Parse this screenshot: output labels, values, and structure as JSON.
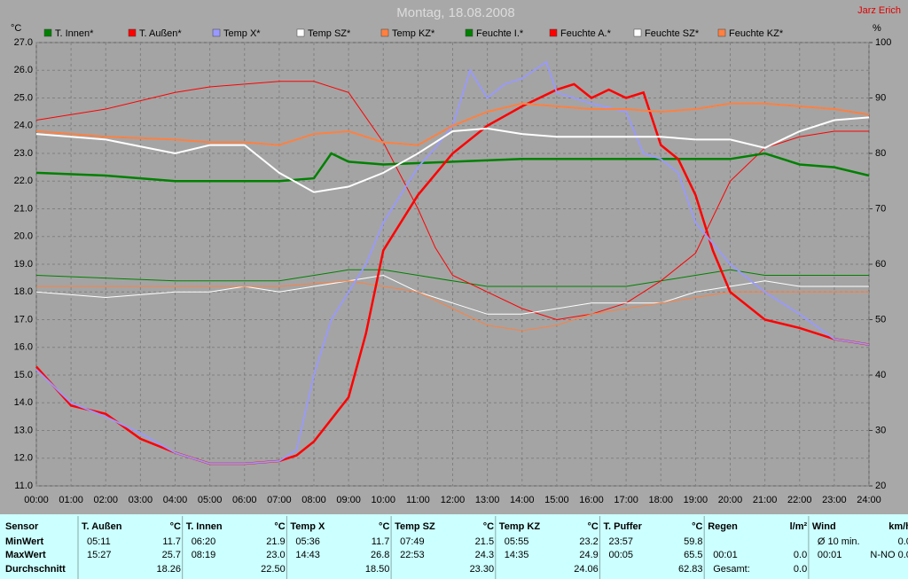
{
  "chart_data": {
    "type": "line",
    "title": "Montag, 18.08.2008",
    "author": "Jarz Erich",
    "y_unit": "°C",
    "y2_unit": "%",
    "xlim": [
      0,
      24
    ],
    "xticks": [
      {
        "value": 0,
        "label": "00:00"
      },
      {
        "value": 1,
        "label": "01:00"
      },
      {
        "value": 2,
        "label": "02:00"
      },
      {
        "value": 3,
        "label": "03:00"
      },
      {
        "value": 4,
        "label": "04:00"
      },
      {
        "value": 5,
        "label": "05:00"
      },
      {
        "value": 6,
        "label": "06:00"
      },
      {
        "value": 7,
        "label": "07:00"
      },
      {
        "value": 8,
        "label": "08:00"
      },
      {
        "value": 9,
        "label": "09:00"
      },
      {
        "value": 10,
        "label": "10:00"
      },
      {
        "value": 11,
        "label": "11:00"
      },
      {
        "value": 12,
        "label": "12:00"
      },
      {
        "value": 13,
        "label": "13:00"
      },
      {
        "value": 14,
        "label": "14:00"
      },
      {
        "value": 15,
        "label": "15:00"
      },
      {
        "value": 16,
        "label": "16:00"
      },
      {
        "value": 17,
        "label": "17:00"
      },
      {
        "value": 18,
        "label": "18:00"
      },
      {
        "value": 19,
        "label": "19:00"
      },
      {
        "value": 20,
        "label": "20:00"
      },
      {
        "value": 21,
        "label": "21:00"
      },
      {
        "value": 22,
        "label": "22:00"
      },
      {
        "value": 23,
        "label": "23:00"
      },
      {
        "value": 24,
        "label": "24:00"
      }
    ],
    "ylim": [
      11,
      27
    ],
    "yticks": [
      {
        "value": 11,
        "label": "11.0"
      },
      {
        "value": 12,
        "label": "12.0"
      },
      {
        "value": 13,
        "label": "13.0"
      },
      {
        "value": 14,
        "label": "14.0"
      },
      {
        "value": 15,
        "label": "15.0"
      },
      {
        "value": 16,
        "label": "16.0"
      },
      {
        "value": 17,
        "label": "17.0"
      },
      {
        "value": 18,
        "label": "18.0"
      },
      {
        "value": 19,
        "label": "19.0"
      },
      {
        "value": 20,
        "label": "20.0"
      },
      {
        "value": 21,
        "label": "21.0"
      },
      {
        "value": 22,
        "label": "22.0"
      },
      {
        "value": 23,
        "label": "23.0"
      },
      {
        "value": 24,
        "label": "24.0"
      },
      {
        "value": 25,
        "label": "25.0"
      },
      {
        "value": 26,
        "label": "26.0"
      },
      {
        "value": 27,
        "label": "27.0"
      }
    ],
    "y2lim": [
      20,
      100
    ],
    "y2ticks": [
      20,
      30,
      40,
      50,
      60,
      70,
      80,
      90,
      100
    ],
    "grid": true,
    "series": [
      {
        "name": "T. Innen*",
        "color": "#008000",
        "width": 2.5,
        "x": [
          0,
          2,
          4,
          6,
          7,
          8,
          8.5,
          9,
          10,
          12,
          14,
          16,
          18,
          20,
          21,
          22,
          23,
          24
        ],
        "values": [
          22.3,
          22.2,
          22.0,
          22.0,
          22.0,
          22.1,
          23.0,
          22.7,
          22.6,
          22.7,
          22.8,
          22.8,
          22.8,
          22.8,
          23.0,
          22.6,
          22.5,
          22.2
        ]
      },
      {
        "name": "T. Außen*",
        "color": "#ff0000",
        "width": 2.5,
        "x": [
          0,
          1,
          2,
          3,
          4,
          5,
          6,
          7,
          7.5,
          8,
          9,
          9.5,
          10,
          11,
          12,
          13,
          14,
          15,
          15.5,
          16,
          16.5,
          17,
          17.5,
          18,
          18.5,
          19,
          19.5,
          20,
          21,
          22,
          23,
          24
        ],
        "values": [
          15.3,
          13.9,
          13.6,
          12.7,
          12.2,
          11.8,
          11.8,
          11.9,
          12.1,
          12.6,
          14.2,
          16.5,
          19.5,
          21.5,
          23.0,
          24.0,
          24.7,
          25.3,
          25.5,
          25.0,
          25.3,
          25.0,
          25.2,
          23.3,
          22.8,
          21.5,
          19.5,
          18.0,
          17.0,
          16.7,
          16.3,
          16.1
        ]
      },
      {
        "name": "Temp X*",
        "color": "#9999ff",
        "width": 1.8,
        "x": [
          0,
          1,
          2,
          3,
          4,
          5,
          6,
          7,
          7.5,
          8,
          8.5,
          9,
          9.5,
          10,
          10.5,
          11,
          11.5,
          12,
          12.5,
          13,
          13.5,
          14,
          14.7,
          15,
          16,
          17,
          17.5,
          18,
          18.5,
          19,
          20,
          21,
          22,
          23,
          24
        ],
        "values": [
          15.2,
          14.0,
          13.5,
          12.9,
          12.2,
          11.8,
          11.8,
          11.9,
          12.3,
          15.0,
          17.0,
          18.0,
          19.0,
          20.5,
          21.5,
          22.5,
          23.2,
          24.0,
          26.0,
          25.0,
          25.5,
          25.7,
          26.3,
          25.2,
          24.8,
          24.5,
          23.0,
          22.8,
          22.3,
          20.5,
          19.0,
          18.0,
          17.2,
          16.3,
          16.1
        ]
      },
      {
        "name": "Temp SZ*",
        "color": "#ffffff",
        "width": 2,
        "x": [
          0,
          2,
          4,
          5,
          6,
          7,
          8,
          9,
          10,
          11,
          12,
          13,
          14,
          15,
          16,
          17,
          18,
          19,
          20,
          21,
          22,
          23,
          24
        ],
        "values": [
          23.7,
          23.5,
          23.0,
          23.3,
          23.3,
          22.3,
          21.6,
          21.8,
          22.3,
          23.0,
          23.8,
          23.9,
          23.7,
          23.6,
          23.6,
          23.6,
          23.6,
          23.5,
          23.5,
          23.2,
          23.8,
          24.2,
          24.3
        ]
      },
      {
        "name": "Temp KZ*",
        "color": "#ff8040",
        "width": 2,
        "x": [
          0,
          2,
          4,
          5,
          6,
          7,
          8,
          9,
          10,
          11,
          12,
          13,
          14,
          15,
          16,
          17,
          18,
          19,
          20,
          21,
          22,
          23,
          24
        ],
        "values": [
          23.8,
          23.6,
          23.5,
          23.4,
          23.4,
          23.3,
          23.7,
          23.8,
          23.4,
          23.3,
          24.0,
          24.5,
          24.8,
          24.7,
          24.6,
          24.6,
          24.5,
          24.6,
          24.8,
          24.8,
          24.7,
          24.6,
          24.4
        ]
      },
      {
        "name": "Feuchte I.*",
        "color": "#008000",
        "width": 1,
        "axis": "y2",
        "x": [
          0,
          4,
          7,
          9,
          10,
          11,
          12,
          13,
          14,
          15,
          16,
          17,
          18,
          19,
          20,
          21,
          22,
          24
        ],
        "values": [
          58,
          57,
          57,
          59,
          59,
          58,
          57,
          56,
          56,
          56,
          56,
          56,
          57,
          58,
          59,
          58,
          58,
          58
        ]
      },
      {
        "name": "Feuchte A.*",
        "color": "#ff0000",
        "width": 1,
        "axis": "y2",
        "x": [
          0,
          2,
          4,
          5,
          7,
          8,
          9,
          10,
          11,
          11.5,
          12,
          13,
          14,
          15,
          16,
          17,
          18,
          19,
          20,
          21,
          22,
          23,
          24
        ],
        "values": [
          86,
          88,
          91,
          92,
          93,
          93,
          91,
          82,
          70,
          63,
          58,
          55,
          52,
          50,
          51,
          53,
          57,
          62,
          75,
          81,
          83,
          84,
          84
        ]
      },
      {
        "name": "Feuchte SZ*",
        "color": "#ffffff",
        "width": 1,
        "axis": "y2",
        "x": [
          0,
          2,
          4,
          5,
          6,
          7,
          8,
          9,
          10,
          11,
          12,
          13,
          14,
          15,
          16,
          17,
          18,
          19,
          20,
          21,
          22,
          24
        ],
        "values": [
          55,
          54,
          55,
          55,
          56,
          55,
          56,
          57,
          58,
          55,
          53,
          51,
          51,
          52,
          53,
          53,
          53,
          55,
          56,
          57,
          56,
          56
        ]
      },
      {
        "name": "Feuchte KZ*",
        "color": "#ff8040",
        "width": 1,
        "axis": "y2",
        "x": [
          0,
          4,
          7,
          9,
          10,
          11,
          12,
          13,
          14,
          15,
          16,
          17,
          18,
          19,
          20,
          22,
          24
        ],
        "values": [
          56,
          56,
          56,
          57,
          56,
          55,
          52,
          49,
          48,
          49,
          51,
          52,
          53,
          54,
          55,
          55,
          55
        ]
      }
    ]
  },
  "table": {
    "row_labels": [
      "Sensor",
      "MinWert",
      "MaxWert",
      "Durchschnitt"
    ],
    "groups": [
      {
        "name": "T. Außen",
        "unit": "°C",
        "rows": [
          [
            "05:11",
            "11.7"
          ],
          [
            "15:27",
            "25.7"
          ],
          [
            "18.26"
          ]
        ]
      },
      {
        "name": "T. Innen",
        "unit": "°C",
        "rows": [
          [
            "06:20",
            "21.9"
          ],
          [
            "08:19",
            "23.0"
          ],
          [
            "22.50"
          ]
        ]
      },
      {
        "name": "Temp X",
        "unit": "°C",
        "rows": [
          [
            "05:36",
            "11.7"
          ],
          [
            "14:43",
            "26.8"
          ],
          [
            "18.50"
          ]
        ]
      },
      {
        "name": "Temp SZ",
        "unit": "°C",
        "rows": [
          [
            "07:49",
            "21.5"
          ],
          [
            "22:53",
            "24.3"
          ],
          [
            "23.30"
          ]
        ]
      },
      {
        "name": "Temp KZ",
        "unit": "°C",
        "rows": [
          [
            "05:55",
            "23.2"
          ],
          [
            "14:35",
            "24.9"
          ],
          [
            "24.06"
          ]
        ]
      },
      {
        "name": "T. Puffer",
        "unit": "°C",
        "rows": [
          [
            "23:57",
            "59.8"
          ],
          [
            "00:05",
            "65.5"
          ],
          [
            "62.83"
          ]
        ]
      },
      {
        "name": "Regen",
        "unit": "l/m²",
        "rows": [
          [],
          [
            "00:01",
            "0.0"
          ],
          [
            "Gesamt:",
            "0.0"
          ]
        ]
      },
      {
        "name": "Wind",
        "unit": "km/h",
        "rows": [
          [
            "Ø 10 min.",
            "0.0"
          ],
          [
            "00:01",
            "N-NO 0.0"
          ],
          []
        ]
      }
    ]
  }
}
